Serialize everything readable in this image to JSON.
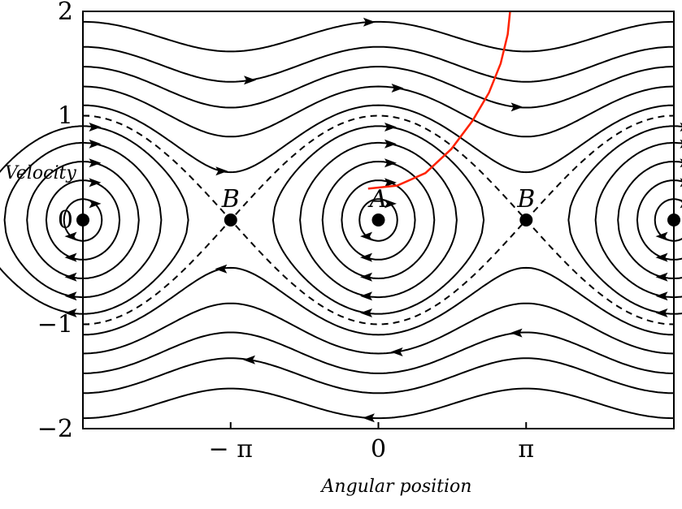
{
  "chart_data": {
    "type": "line",
    "title": "",
    "xlabel": "Angular position",
    "ylabel": "Velocity",
    "xlim": [
      -6.2832,
      6.2832
    ],
    "ylim": [
      -2,
      2
    ],
    "grid": false,
    "x_ticks": [
      {
        "value": -3.1416,
        "label": "− π"
      },
      {
        "value": 0,
        "label": "0"
      },
      {
        "value": 3.1416,
        "label": "π"
      }
    ],
    "y_ticks": [
      {
        "value": 2,
        "label": "2"
      },
      {
        "value": 1,
        "label": "1"
      },
      {
        "value": 0,
        "label": "0"
      },
      {
        "value": -1,
        "label": "−1"
      },
      {
        "value": -2,
        "label": "−2"
      }
    ],
    "stable_points": [
      {
        "x": -6.2832,
        "y": 0,
        "label": ""
      },
      {
        "x": 0,
        "y": 0,
        "label": "A"
      },
      {
        "x": 6.2832,
        "y": 0,
        "label": ""
      }
    ],
    "saddle_points": [
      {
        "x": -3.1416,
        "y": 0,
        "label": "B"
      },
      {
        "x": 3.1416,
        "y": 0,
        "label": "B"
      }
    ],
    "separatrix": {
      "energy": 1.0,
      "style": "dashed"
    },
    "rotating_orbit_energies": [
      1.1,
      1.28,
      1.47,
      1.66,
      1.9
    ],
    "libration_orbit_energies": [
      0.2,
      0.38,
      0.56,
      0.74,
      0.9
    ],
    "red_trajectory": {
      "color": "#ff2200",
      "x": [
        -0.22,
        0.4,
        1.0,
        1.55,
        2.0,
        2.35,
        2.6,
        2.75,
        2.8
      ],
      "y": [
        0.3,
        0.33,
        0.45,
        0.68,
        0.95,
        1.22,
        1.5,
        1.78,
        2.0
      ]
    }
  }
}
